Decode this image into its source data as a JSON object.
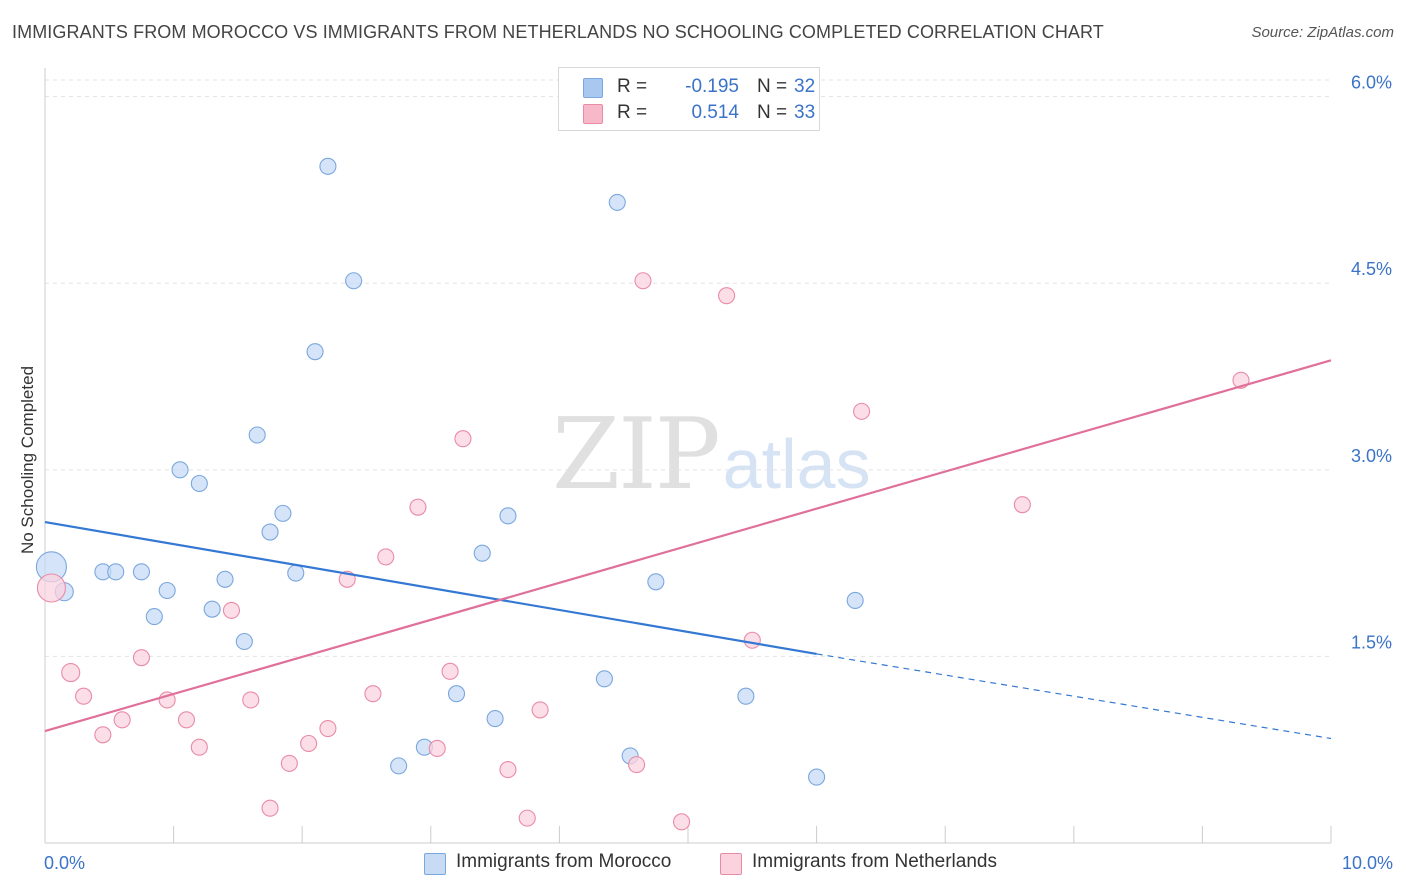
{
  "title": "IMMIGRANTS FROM MOROCCO VS IMMIGRANTS FROM NETHERLANDS NO SCHOOLING COMPLETED CORRELATION CHART",
  "source": "Source: ZipAtlas.com",
  "watermark": {
    "zip": "ZIP",
    "atlas": "atlas"
  },
  "stats": [
    {
      "r_label": "R =",
      "r_value": "-0.195",
      "n_label": "N =",
      "n_value": "32",
      "color": "#a9c8f0",
      "border": "#7aa7de"
    },
    {
      "r_label": "R =",
      "r_value": "0.514",
      "n_label": "N =",
      "n_value": "33",
      "color": "#f7b8ca",
      "border": "#e98ba6"
    }
  ],
  "legend": [
    {
      "label": "Immigrants from Morocco",
      "color": "#c7dbf5",
      "border": "#7aa7de"
    },
    {
      "label": "Immigrants from Netherlands",
      "color": "#fad3df",
      "border": "#e98ba6"
    }
  ],
  "chart_data": {
    "type": "scatter",
    "title": "IMMIGRANTS FROM MOROCCO VS IMMIGRANTS FROM NETHERLANDS NO SCHOOLING COMPLETED CORRELATION CHART",
    "xlabel": "",
    "ylabel": "No Schooling Completed",
    "xlim": [
      0,
      10
    ],
    "ylim": [
      0,
      6.15
    ],
    "x_tick_labels": [
      {
        "value": 0,
        "label": "0.0%"
      },
      {
        "value": 10,
        "label": "10.0%"
      }
    ],
    "x_minor_ticks": [
      1,
      2,
      3,
      4,
      5,
      6,
      7,
      8,
      9,
      10
    ],
    "y_ticks": [
      {
        "value": 1.5,
        "label": "1.5%"
      },
      {
        "value": 3.0,
        "label": "3.0%"
      },
      {
        "value": 4.5,
        "label": "4.5%"
      },
      {
        "value": 6.0,
        "label": "6.0%"
      }
    ],
    "grid": true,
    "series": [
      {
        "name": "Immigrants from Morocco",
        "fill": "#c7dbf5",
        "stroke": "#7aa7de",
        "line_color": "#3478d4",
        "trend": {
          "x0": 0,
          "y0": 2.58,
          "x1": 6.0,
          "y1": 1.52,
          "dash_to_x": 10,
          "dash_to_y": 0.84
        },
        "points": [
          [
            0.05,
            2.22,
            15
          ],
          [
            0.15,
            2.02,
            9
          ],
          [
            0.45,
            2.18,
            8
          ],
          [
            0.55,
            2.18,
            8
          ],
          [
            0.75,
            2.18,
            8
          ],
          [
            0.85,
            1.82,
            8
          ],
          [
            0.95,
            2.03,
            8
          ],
          [
            1.05,
            3.0,
            8
          ],
          [
            1.2,
            2.89,
            8
          ],
          [
            1.3,
            1.88,
            8
          ],
          [
            1.4,
            2.12,
            8
          ],
          [
            1.55,
            1.62,
            8
          ],
          [
            1.65,
            3.28,
            8
          ],
          [
            1.75,
            2.5,
            8
          ],
          [
            1.85,
            2.65,
            8
          ],
          [
            1.95,
            2.17,
            8
          ],
          [
            2.1,
            3.95,
            8
          ],
          [
            2.2,
            5.44,
            8
          ],
          [
            2.4,
            4.52,
            8
          ],
          [
            2.75,
            0.62,
            8
          ],
          [
            2.95,
            0.77,
            8
          ],
          [
            3.2,
            1.2,
            8
          ],
          [
            3.4,
            2.33,
            8
          ],
          [
            3.5,
            1.0,
            8
          ],
          [
            3.6,
            2.63,
            8
          ],
          [
            4.35,
            1.32,
            8
          ],
          [
            4.45,
            5.15,
            8
          ],
          [
            4.55,
            0.7,
            8
          ],
          [
            4.75,
            2.1,
            8
          ],
          [
            5.45,
            1.18,
            8
          ],
          [
            6.0,
            0.53,
            8
          ],
          [
            6.3,
            1.95,
            8
          ]
        ]
      },
      {
        "name": "Immigrants from Netherlands",
        "fill": "#fad3df",
        "stroke": "#e98ba6",
        "line_color": "#e0709a",
        "trend": {
          "x0": 0,
          "y0": 0.9,
          "x1": 10,
          "y1": 3.88
        },
        "points": [
          [
            0.05,
            2.05,
            14
          ],
          [
            0.2,
            1.37,
            9
          ],
          [
            0.3,
            1.18,
            8
          ],
          [
            0.45,
            0.87,
            8
          ],
          [
            0.6,
            0.99,
            8
          ],
          [
            0.75,
            1.49,
            8
          ],
          [
            0.95,
            1.15,
            8
          ],
          [
            1.1,
            0.99,
            8
          ],
          [
            1.2,
            0.77,
            8
          ],
          [
            1.45,
            1.87,
            8
          ],
          [
            1.6,
            1.15,
            8
          ],
          [
            1.75,
            0.28,
            8
          ],
          [
            1.9,
            0.64,
            8
          ],
          [
            2.05,
            0.8,
            8
          ],
          [
            2.2,
            0.92,
            8
          ],
          [
            2.35,
            2.12,
            8
          ],
          [
            2.55,
            1.2,
            8
          ],
          [
            2.65,
            2.3,
            8
          ],
          [
            2.9,
            2.7,
            8
          ],
          [
            3.05,
            0.76,
            8
          ],
          [
            3.15,
            1.38,
            8
          ],
          [
            3.25,
            3.25,
            8
          ],
          [
            3.6,
            0.59,
            8
          ],
          [
            3.75,
            0.2,
            8
          ],
          [
            3.85,
            1.07,
            8
          ],
          [
            4.6,
            0.63,
            8
          ],
          [
            4.65,
            4.52,
            8
          ],
          [
            4.95,
            0.17,
            8
          ],
          [
            5.3,
            4.4,
            8
          ],
          [
            5.5,
            1.63,
            8
          ],
          [
            6.35,
            3.47,
            8
          ],
          [
            7.6,
            2.72,
            8
          ],
          [
            9.3,
            3.72,
            8
          ]
        ]
      }
    ]
  }
}
